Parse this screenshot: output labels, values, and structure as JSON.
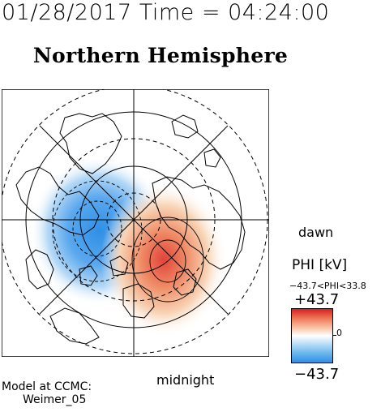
{
  "header": {
    "datetime": "01/28/2017 Time = 04:24:00"
  },
  "title": "Northern Hemisphere",
  "labels": {
    "dawn": "dawn",
    "midnight": "midnight"
  },
  "colorbar": {
    "quantity": "PHI [kV]",
    "range_text": "−43.7<PHI<33.8",
    "max_label": "+43.7",
    "min_label": "−43.7",
    "zero_label": "0",
    "colors": {
      "max": "#d81f1f",
      "zero": "#ffffff",
      "min": "#2f8fe6"
    }
  },
  "credit": {
    "line1": "Model at CCMC:",
    "line2": "Weimer_05"
  }
}
